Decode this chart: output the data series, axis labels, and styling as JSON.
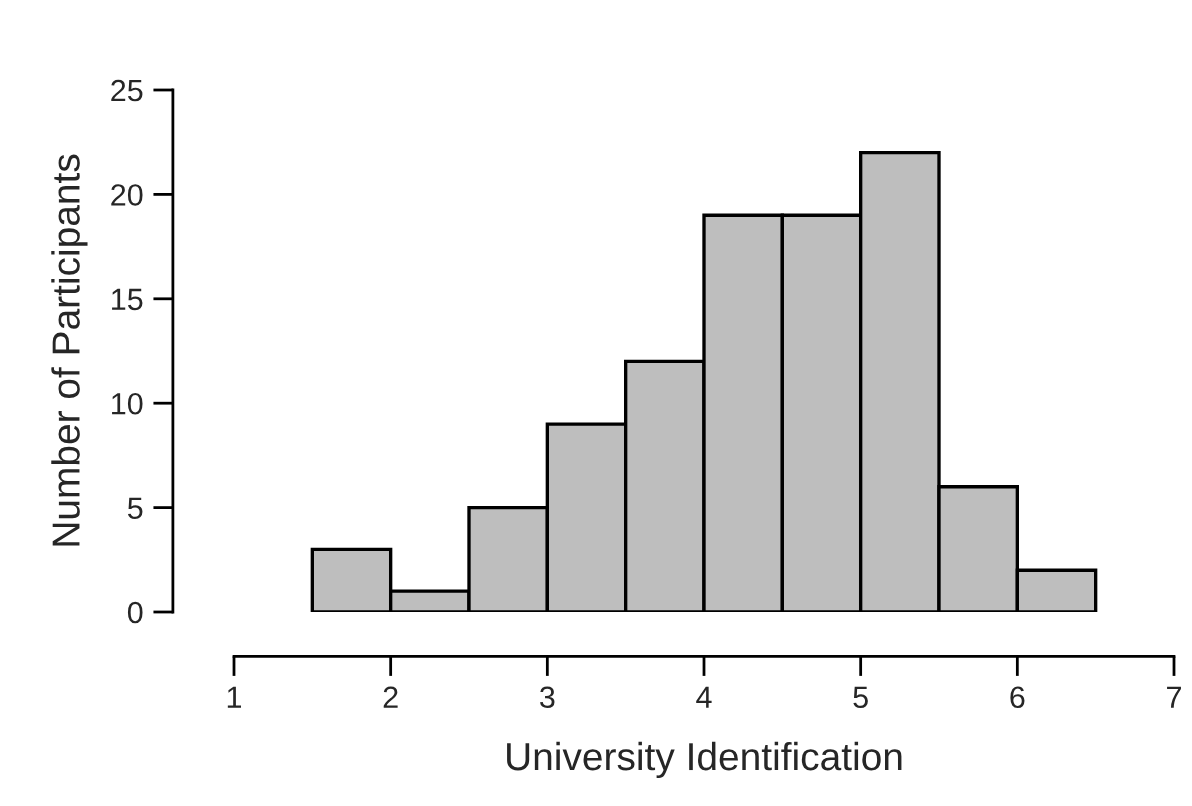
{
  "chart_data": {
    "type": "histogram",
    "xlabel": "University Identification",
    "ylabel": "Number of Participants",
    "bins": [
      1.5,
      2,
      2.5,
      3,
      3.5,
      4,
      4.5,
      5,
      5.5,
      6,
      6.5
    ],
    "values": [
      3,
      1,
      5,
      9,
      12,
      19,
      19,
      22,
      6,
      2
    ],
    "color": "#bebebe",
    "xlim": [
      1,
      7
    ],
    "xticks": [
      1,
      2,
      3,
      4,
      5,
      6,
      7
    ],
    "ylim": [
      0,
      25
    ],
    "yticks": [
      0,
      5,
      10,
      15,
      20,
      25
    ],
    "grid": false
  }
}
